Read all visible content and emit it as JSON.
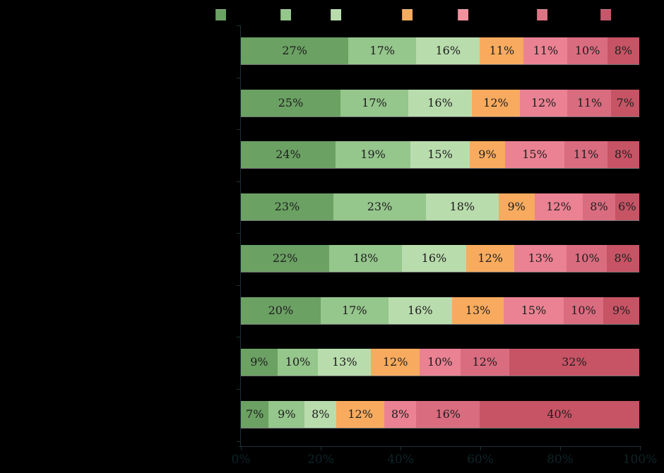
{
  "background_color": "#000000",
  "chart_data": {
    "type": "bar",
    "orientation": "horizontal",
    "stacked": true,
    "normalized": true,
    "value_suffix": "%",
    "grid": false,
    "legend_position": "top",
    "series_colors": [
      "#6ba163",
      "#95c68c",
      "#b9dcad",
      "#f8ab5e",
      "#ea8293",
      "#da6c80",
      "#c65465"
    ],
    "legend_swatch_colors": [
      "#6ba163",
      "#95c68c",
      "#b9dcad",
      "#f8ab5e",
      "#f2919f",
      "#dd7485",
      "#c4576a"
    ],
    "rows": [
      {
        "values": [
          27,
          17,
          16,
          11,
          11,
          10,
          8
        ]
      },
      {
        "values": [
          25,
          17,
          16,
          12,
          12,
          11,
          7
        ]
      },
      {
        "values": [
          24,
          19,
          15,
          9,
          15,
          11,
          8
        ]
      },
      {
        "values": [
          23,
          23,
          18,
          9,
          12,
          8,
          6
        ]
      },
      {
        "values": [
          22,
          18,
          16,
          12,
          13,
          10,
          8
        ]
      },
      {
        "values": [
          20,
          17,
          16,
          13,
          15,
          10,
          9
        ]
      },
      {
        "values": [
          9,
          10,
          13,
          12,
          10,
          12,
          32
        ]
      },
      {
        "values": [
          7,
          9,
          8,
          12,
          8,
          16,
          40
        ]
      }
    ],
    "x_axis": {
      "tick_labels": [
        "0%",
        "20%",
        "40%",
        "60%",
        "80%",
        "100%"
      ],
      "range": [
        0,
        100
      ]
    },
    "colors": {
      "segment_label": "#1d1d1d",
      "axis_line": "#1d3134",
      "axis_tick_label": "#0e2427"
    }
  }
}
